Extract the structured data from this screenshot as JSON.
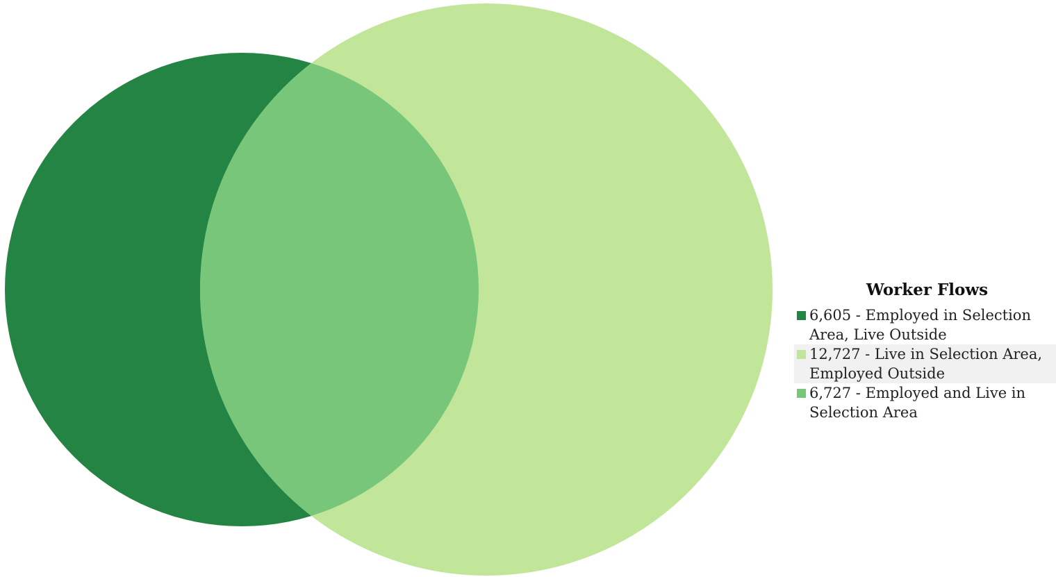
{
  "chart_data": {
    "type": "venn",
    "title": "",
    "legend_title": "Worker Flows",
    "legend_position": "right",
    "sets": [
      {
        "id": "employed",
        "label": "Employed in Selection Area"
      },
      {
        "id": "live",
        "label": "Live in Selection Area"
      }
    ],
    "regions": [
      {
        "id": "employed_only",
        "sets": [
          "employed"
        ],
        "value": 6605,
        "value_label": "6,605",
        "label": "Employed in Selection Area, Live Outside",
        "color": "#238443"
      },
      {
        "id": "live_only",
        "sets": [
          "live"
        ],
        "value": 12727,
        "value_label": "12,727",
        "label": "Live in Selection Area, Employed Outside",
        "color": "#c2e699"
      },
      {
        "id": "both",
        "sets": [
          "employed",
          "live"
        ],
        "value": 6727,
        "value_label": "6,727",
        "label": "Employed and Live in Selection Area",
        "color": "#78c679"
      }
    ]
  },
  "legend": {
    "title": "Worker Flows",
    "items": [
      {
        "text": "6,605 - Employed in Selection Area, Live Outside",
        "color": "#238443",
        "highlighted": false
      },
      {
        "text": "12,727 - Live in Selection Area, Employed Outside",
        "color": "#c2e699",
        "highlighted": true
      },
      {
        "text": "6,727 - Employed and Live in Selection Area",
        "color": "#78c679",
        "highlighted": false
      }
    ]
  }
}
